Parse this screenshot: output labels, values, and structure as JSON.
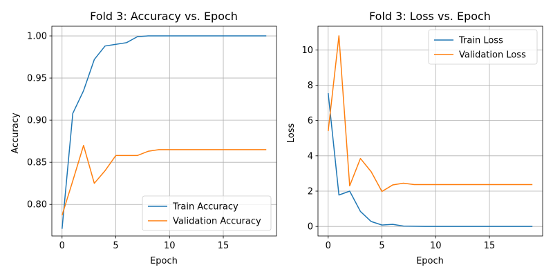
{
  "chart_data": [
    {
      "type": "line",
      "title": "Fold 3: Accuracy vs. Epoch",
      "xlabel": "Epoch",
      "ylabel": "Accuracy",
      "xlim": [
        -0.95,
        19.95
      ],
      "ylim": [
        0.7625,
        1.0115
      ],
      "xticks": [
        0,
        5,
        10,
        15
      ],
      "yticks": [
        0.8,
        0.85,
        0.9,
        0.95,
        1.0
      ],
      "xtick_labels": [
        "0",
        "5",
        "10",
        "15"
      ],
      "ytick_labels": [
        "0.80",
        "0.85",
        "0.90",
        "0.95",
        "1.00"
      ],
      "grid": true,
      "legend_position": "lower-right",
      "x": [
        0,
        1,
        2,
        3,
        4,
        5,
        6,
        7,
        8,
        9,
        10,
        11,
        12,
        13,
        14,
        15,
        16,
        17,
        18,
        19
      ],
      "series": [
        {
          "name": "Train Accuracy",
          "color": "#1f77b4",
          "values": [
            0.771,
            0.908,
            0.935,
            0.972,
            0.988,
            0.99,
            0.992,
            0.999,
            1.0,
            1.0,
            1.0,
            1.0,
            1.0,
            1.0,
            1.0,
            1.0,
            1.0,
            1.0,
            1.0,
            1.0
          ]
        },
        {
          "name": "Validation Accuracy",
          "color": "#ff7f0e",
          "values": [
            0.787,
            0.828,
            0.87,
            0.825,
            0.84,
            0.858,
            0.858,
            0.858,
            0.863,
            0.865,
            0.865,
            0.865,
            0.865,
            0.865,
            0.865,
            0.865,
            0.865,
            0.865,
            0.865,
            0.865
          ]
        }
      ]
    },
    {
      "type": "line",
      "title": "Fold 3: Loss vs. Epoch",
      "xlabel": "Epoch",
      "ylabel": "Loss",
      "xlim": [
        -0.95,
        19.95
      ],
      "ylim": [
        -0.54,
        11.34
      ],
      "xticks": [
        0,
        5,
        10,
        15
      ],
      "yticks": [
        0,
        2,
        4,
        6,
        8,
        10
      ],
      "xtick_labels": [
        "0",
        "5",
        "10",
        "15"
      ],
      "ytick_labels": [
        "0",
        "2",
        "4",
        "6",
        "8",
        "10"
      ],
      "grid": true,
      "legend_position": "top-right",
      "x": [
        0,
        1,
        2,
        3,
        4,
        5,
        6,
        7,
        8,
        9,
        10,
        11,
        12,
        13,
        14,
        15,
        16,
        17,
        18,
        19
      ],
      "series": [
        {
          "name": "Train Loss",
          "color": "#1f77b4",
          "values": [
            7.55,
            1.78,
            2.0,
            0.85,
            0.28,
            0.08,
            0.12,
            0.02,
            0.01,
            0.0,
            0.0,
            0.0,
            0.0,
            0.0,
            0.0,
            0.0,
            0.0,
            0.0,
            0.0,
            0.0
          ]
        },
        {
          "name": "Validation Loss",
          "color": "#ff7f0e",
          "values": [
            5.4,
            10.8,
            2.3,
            3.85,
            3.1,
            1.98,
            2.35,
            2.45,
            2.37,
            2.37,
            2.37,
            2.37,
            2.37,
            2.37,
            2.37,
            2.37,
            2.37,
            2.37,
            2.37,
            2.37
          ]
        }
      ]
    }
  ]
}
